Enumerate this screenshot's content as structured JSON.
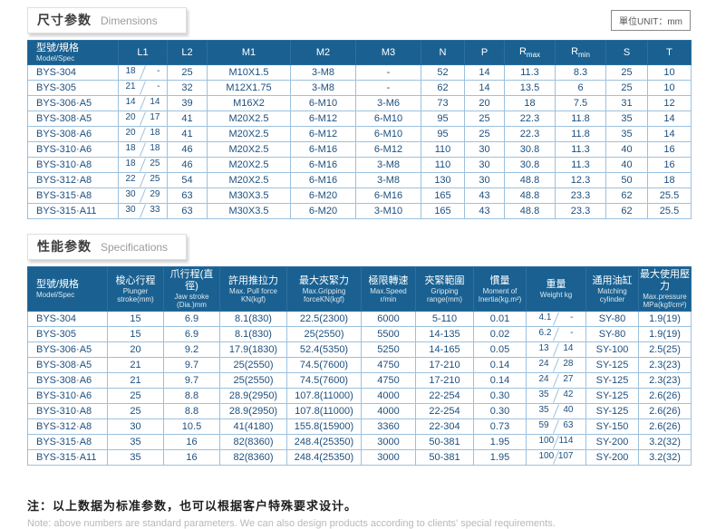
{
  "page": {
    "unit_label": "單位UNIT：mm",
    "note_zh": "注：以上数据为标准参数，也可以根据客户特殊要求设计。",
    "note_en": "Note: above numbers are standard parameters. We can also design products according to clients' special requirements."
  },
  "sections": [
    {
      "id": "dimensions",
      "title_zh": "尺寸参数",
      "title_en": "Dimensions",
      "table": {
        "columns": [
          {
            "zh": "型號/規格",
            "en": "Model/Spec"
          },
          {
            "label": "L1"
          },
          {
            "label": "L2"
          },
          {
            "label": "M1"
          },
          {
            "label": "M2"
          },
          {
            "label": "M3"
          },
          {
            "label": "N"
          },
          {
            "label": "P"
          },
          {
            "label": "R",
            "sub": "max"
          },
          {
            "label": "R",
            "sub": "min"
          },
          {
            "label": "S"
          },
          {
            "label": "T"
          }
        ],
        "rows": [
          [
            "BYS-304",
            {
              "a": "18",
              "b": "-"
            },
            "25",
            "M10X1.5",
            "3-M8",
            "-",
            "52",
            "14",
            "11.3",
            "8.3",
            "25",
            "10"
          ],
          [
            "BYS-305",
            {
              "a": "21",
              "b": "-"
            },
            "32",
            "M12X1.75",
            "3-M8",
            "-",
            "62",
            "14",
            "13.5",
            "6",
            "25",
            "10"
          ],
          [
            "BYS-306·A5",
            {
              "a": "14",
              "b": "14"
            },
            "39",
            "M16X2",
            "6-M10",
            "3-M6",
            "73",
            "20",
            "18",
            "7.5",
            "31",
            "12"
          ],
          [
            "BYS-308·A5",
            {
              "a": "20",
              "b": "17"
            },
            "41",
            "M20X2.5",
            "6-M12",
            "6-M10",
            "95",
            "25",
            "22.3",
            "11.8",
            "35",
            "14"
          ],
          [
            "BYS-308·A6",
            {
              "a": "20",
              "b": "18"
            },
            "41",
            "M20X2.5",
            "6-M12",
            "6-M10",
            "95",
            "25",
            "22.3",
            "11.8",
            "35",
            "14"
          ],
          [
            "BYS-310·A6",
            {
              "a": "18",
              "b": "18"
            },
            "46",
            "M20X2.5",
            "6-M16",
            "6-M12",
            "110",
            "30",
            "30.8",
            "11.3",
            "40",
            "16"
          ],
          [
            "BYS-310·A8",
            {
              "a": "18",
              "b": "25"
            },
            "46",
            "M20X2.5",
            "6-M16",
            "3-M8",
            "110",
            "30",
            "30.8",
            "11.3",
            "40",
            "16"
          ],
          [
            "BYS-312·A8",
            {
              "a": "22",
              "b": "25"
            },
            "54",
            "M20X2.5",
            "6-M16",
            "3-M8",
            "130",
            "30",
            "48.8",
            "12.3",
            "50",
            "18"
          ],
          [
            "BYS-315·A8",
            {
              "a": "30",
              "b": "29"
            },
            "63",
            "M30X3.5",
            "6-M20",
            "6-M16",
            "165",
            "43",
            "48.8",
            "23.3",
            "62",
            "25.5"
          ],
          [
            "BYS-315·A11",
            {
              "a": "30",
              "b": "33"
            },
            "63",
            "M30X3.5",
            "6-M20",
            "3-M10",
            "165",
            "43",
            "48.8",
            "23.3",
            "62",
            "25.5"
          ]
        ]
      }
    },
    {
      "id": "specifications",
      "title_zh": "性能参数",
      "title_en": "Specifications",
      "table": {
        "columns": [
          {
            "zh": "型號/規格",
            "en": "Model/Spec"
          },
          {
            "zh": "梭心行程",
            "en": "Plunger stroke(mm)"
          },
          {
            "zh": "爪行程(直徑)",
            "en": "Jaw stroke (Dia.)mm"
          },
          {
            "zh": "許用推拉力",
            "en": "Max. Pull force KN(kgf)"
          },
          {
            "zh": "最大夾緊力",
            "en": "Max.Gripping forceKN(kgf)"
          },
          {
            "zh": "極限轉速",
            "en": "Max.Speed r/min"
          },
          {
            "zh": "夾緊範圍",
            "en": "Gripping range(mm)"
          },
          {
            "zh": "慣量",
            "en": "Moment of Inertia(kg.m²)"
          },
          {
            "zh": "重量",
            "en": "Weight kg"
          },
          {
            "zh": "通用油缸",
            "en": "Matching cylinder"
          },
          {
            "zh": "最大使用壓力",
            "en": "Max.pressure MPa(kgf/cm²)"
          }
        ],
        "rows": [
          [
            "BYS-304",
            "15",
            "6.9",
            "8.1(830)",
            "22.5(2300)",
            "6000",
            "5-110",
            "0.01",
            {
              "a": "4.1",
              "b": "-"
            },
            "SY-80",
            "1.9(19)"
          ],
          [
            "BYS-305",
            "15",
            "6.9",
            "8.1(830)",
            "25(2550)",
            "5500",
            "14-135",
            "0.02",
            {
              "a": "6.2",
              "b": "-"
            },
            "SY-80",
            "1.9(19)"
          ],
          [
            "BYS-306·A5",
            "20",
            "9.2",
            "17.9(1830)",
            "52.4(5350)",
            "5250",
            "14-165",
            "0.05",
            {
              "a": "13",
              "b": "14"
            },
            "SY-100",
            "2.5(25)"
          ],
          [
            "BYS-308·A5",
            "21",
            "9.7",
            "25(2550)",
            "74.5(7600)",
            "4750",
            "17-210",
            "0.14",
            {
              "a": "24",
              "b": "28"
            },
            "SY-125",
            "2.3(23)"
          ],
          [
            "BYS-308·A6",
            "21",
            "9.7",
            "25(2550)",
            "74.5(7600)",
            "4750",
            "17-210",
            "0.14",
            {
              "a": "24",
              "b": "27"
            },
            "SY-125",
            "2.3(23)"
          ],
          [
            "BYS-310·A6",
            "25",
            "8.8",
            "28.9(2950)",
            "107.8(11000)",
            "4000",
            "22-254",
            "0.30",
            {
              "a": "35",
              "b": "42"
            },
            "SY-125",
            "2.6(26)"
          ],
          [
            "BYS-310·A8",
            "25",
            "8.8",
            "28.9(2950)",
            "107.8(11000)",
            "4000",
            "22-254",
            "0.30",
            {
              "a": "35",
              "b": "40"
            },
            "SY-125",
            "2.6(26)"
          ],
          [
            "BYS-312·A8",
            "30",
            "10.5",
            "41(4180)",
            "155.8(15900)",
            "3360",
            "22-304",
            "0.73",
            {
              "a": "59",
              "b": "63"
            },
            "SY-150",
            "2.6(26)"
          ],
          [
            "BYS-315·A8",
            "35",
            "16",
            "82(8360)",
            "248.4(25350)",
            "3000",
            "50-381",
            "1.95",
            {
              "a": "100",
              "b": "114"
            },
            "SY-200",
            "3.2(32)"
          ],
          [
            "BYS-315·A11",
            "35",
            "16",
            "82(8360)",
            "248.4(25350)",
            "3000",
            "50-381",
            "1.95",
            {
              "a": "100",
              "b": "107"
            },
            "SY-200",
            "3.2(32)"
          ]
        ]
      }
    }
  ]
}
